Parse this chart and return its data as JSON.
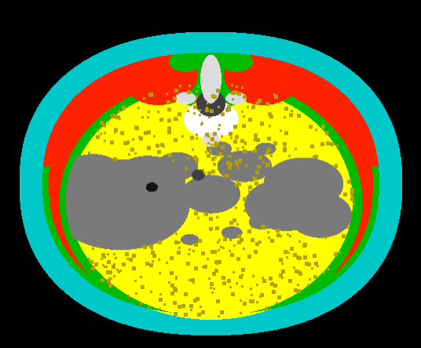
{
  "background_color": "#000000",
  "fig_width": 5.36,
  "fig_height": 4.44,
  "dpi": 100,
  "colors": {
    "subcutaneous": "#00C8C8",
    "skeletal_muscle": "#FF2200",
    "visceral_adipose": "#FFFF00",
    "intramuscular_adipose": "#00BB00",
    "organ_gray": "#7A7A7A",
    "spine_white": "#D8D8D8",
    "spine_bright": "#FFFFFF",
    "spine_dark": "#404040",
    "aorta": "#C0C0C0"
  }
}
